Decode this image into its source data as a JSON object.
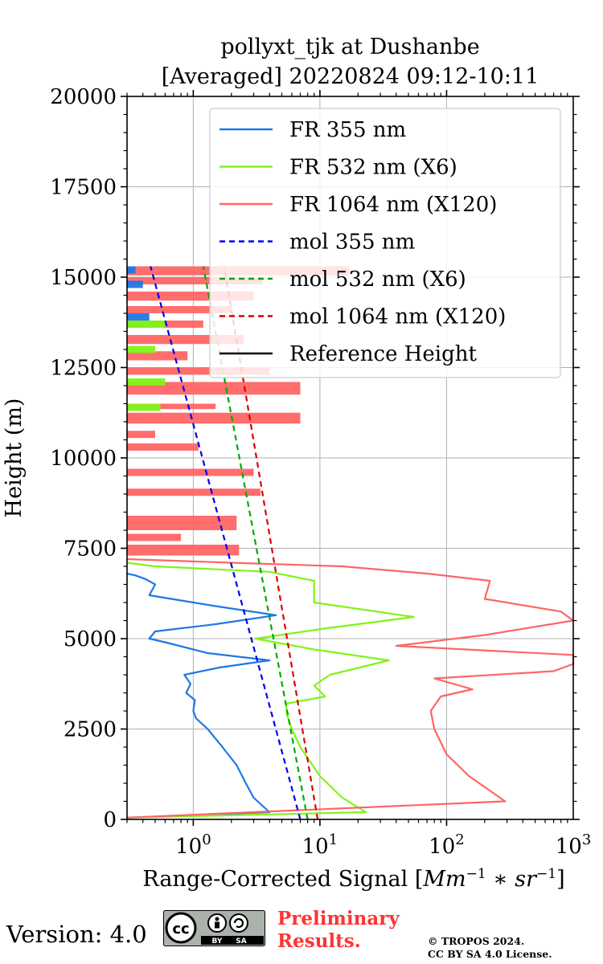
{
  "chart_data": {
    "type": "line",
    "title": "pollyxt_tjk at Dushanbe",
    "subtitle": "[Averaged] 20220824 09:12-10:11",
    "xlabel": "Range-Corrected Signal [Mm^-1 * sr^-1]",
    "ylabel": "Height (m)",
    "xscale": "log",
    "xlim": [
      0.3,
      1000
    ],
    "ylim": [
      0,
      20000
    ],
    "xticks": [
      {
        "value": 1,
        "label": "10^0"
      },
      {
        "value": 10,
        "label": "10^1"
      },
      {
        "value": 100,
        "label": "10^2"
      },
      {
        "value": 1000,
        "label": "10^3"
      }
    ],
    "yticks": [
      0,
      2500,
      5000,
      7500,
      10000,
      12500,
      15000,
      17500,
      20000
    ],
    "ytick_labels": [
      "0",
      "2500",
      "5000",
      "7500",
      "10000",
      "12500",
      "15000",
      "17500",
      "20000"
    ],
    "grid": true,
    "legend_position": "top-right",
    "series": [
      {
        "name": "FR 355 nm",
        "color": "#1f77e8",
        "style": "solid",
        "points": [
          [
            0.3,
            50
          ],
          [
            4.0,
            200
          ],
          [
            3.0,
            600
          ],
          [
            2.6,
            1000
          ],
          [
            2.2,
            1500
          ],
          [
            1.7,
            2000
          ],
          [
            1.3,
            2500
          ],
          [
            1.05,
            2800
          ],
          [
            1.0,
            3000
          ],
          [
            1.03,
            3300
          ],
          [
            0.88,
            3500
          ],
          [
            0.95,
            3750
          ],
          [
            0.85,
            4000
          ],
          [
            1.6,
            4200
          ],
          [
            4.0,
            4400
          ],
          [
            1.3,
            4600
          ],
          [
            0.6,
            4900
          ],
          [
            0.45,
            5000
          ],
          [
            0.5,
            5200
          ],
          [
            1.5,
            5400
          ],
          [
            4.5,
            5650
          ],
          [
            1.5,
            5900
          ],
          [
            0.45,
            6200
          ],
          [
            0.5,
            6500
          ],
          [
            0.42,
            6650
          ],
          [
            0.35,
            6750
          ],
          [
            0.3,
            6800
          ]
        ]
      },
      {
        "name": "FR 532 nm (X6)",
        "color": "#80f41a",
        "style": "solid",
        "points": [
          [
            0.3,
            50
          ],
          [
            23,
            200
          ],
          [
            15,
            600
          ],
          [
            10,
            1200
          ],
          [
            7,
            2000
          ],
          [
            6,
            2500
          ],
          [
            5.5,
            2900
          ],
          [
            5.4,
            3200
          ],
          [
            11,
            3400
          ],
          [
            9,
            3700
          ],
          [
            12,
            4000
          ],
          [
            35,
            4400
          ],
          [
            9,
            4700
          ],
          [
            3.1,
            5000
          ],
          [
            12,
            5300
          ],
          [
            55,
            5600
          ],
          [
            9,
            6000
          ],
          [
            9,
            6600
          ],
          [
            4,
            6850
          ],
          [
            0.5,
            7000
          ],
          [
            0.3,
            7100
          ]
        ]
      },
      {
        "name": "FR 1064 nm (X120)",
        "color": "#ff6565",
        "style": "solid",
        "points": [
          [
            0.3,
            50
          ],
          [
            290,
            500
          ],
          [
            150,
            1200
          ],
          [
            100,
            1800
          ],
          [
            80,
            2500
          ],
          [
            75,
            3000
          ],
          [
            90,
            3400
          ],
          [
            160,
            3600
          ],
          [
            80,
            3900
          ],
          [
            700,
            4100
          ],
          [
            1000,
            4300
          ],
          [
            1000,
            4550
          ],
          [
            40,
            4800
          ],
          [
            200,
            5100
          ],
          [
            1000,
            5500
          ],
          [
            800,
            5750
          ],
          [
            200,
            6100
          ],
          [
            220,
            6600
          ],
          [
            70,
            6800
          ],
          [
            15,
            7000
          ],
          [
            2,
            7100
          ],
          [
            0.3,
            7200
          ]
        ]
      },
      {
        "name": "mol 355 nm",
        "color": "#0000ee",
        "style": "dashed",
        "points": [
          [
            7.0,
            0
          ],
          [
            0.46,
            15300
          ]
        ]
      },
      {
        "name": "mol 532 nm (X6)",
        "color": "#00aa00",
        "style": "dashed",
        "points": [
          [
            8.0,
            0
          ],
          [
            1.2,
            15300
          ]
        ]
      },
      {
        "name": "mol 1064 nm (X120)",
        "color": "#dd0000",
        "style": "dashed",
        "points": [
          [
            9.6,
            0
          ],
          [
            1.75,
            15300
          ]
        ]
      },
      {
        "name": "Reference Height",
        "color": "#000000",
        "style": "solid",
        "points": []
      }
    ],
    "noise_bands_m": {
      "FR 1064 nm (X120)": [
        [
          7300,
          7600,
          2.3
        ],
        [
          7700,
          7900,
          0.8
        ],
        [
          8000,
          8400,
          2.2
        ],
        [
          8950,
          9150,
          3.4
        ],
        [
          9500,
          9700,
          3.0
        ],
        [
          10200,
          10400,
          1.1
        ],
        [
          10550,
          10750,
          0.5
        ],
        [
          10950,
          11250,
          7.0
        ],
        [
          11350,
          11500,
          1.5
        ],
        [
          11750,
          12100,
          7.0
        ],
        [
          12300,
          12500,
          4.0
        ],
        [
          12700,
          12950,
          0.9
        ],
        [
          13150,
          13400,
          2.5
        ],
        [
          13600,
          13800,
          1.2
        ],
        [
          14000,
          14200,
          2.0
        ],
        [
          14350,
          14600,
          3.0
        ],
        [
          14800,
          15000,
          3.5
        ],
        [
          15050,
          15300,
          17.0
        ]
      ],
      "FR 532 nm (X6)": [
        [
          11300,
          11500,
          0.55
        ],
        [
          12000,
          12200,
          0.6
        ],
        [
          12900,
          13100,
          0.5
        ],
        [
          13600,
          13800,
          0.6
        ]
      ],
      "FR 355 nm": [
        [
          13800,
          14000,
          0.45
        ],
        [
          14700,
          14900,
          0.4
        ],
        [
          15100,
          15300,
          0.35
        ]
      ]
    }
  },
  "footer": {
    "version": "Version: 4.0",
    "license_badge": {
      "text_cc": "cc",
      "text_by": "BY",
      "text_sa": "SA"
    },
    "preliminary_line1": "Preliminary",
    "preliminary_line2": "Results.",
    "copyright_line1": "© TROPOS 2024.",
    "copyright_line2": "CC BY SA 4.0 License."
  }
}
